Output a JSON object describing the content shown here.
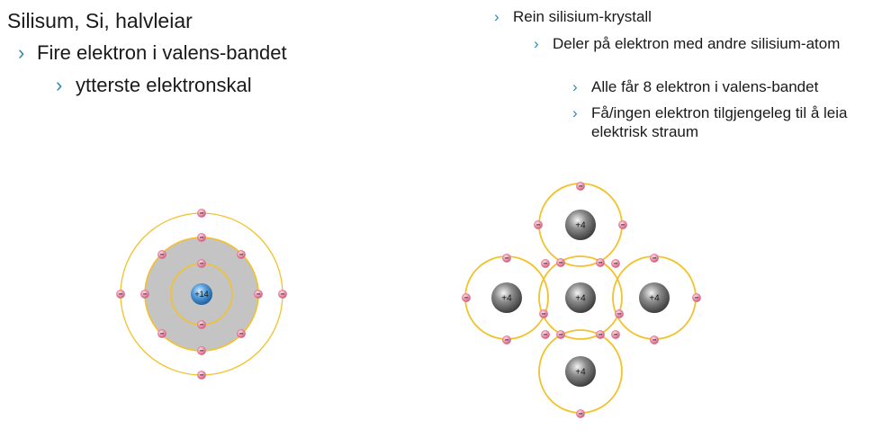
{
  "title": "Silisum, Si, halvleiar",
  "left_bullets": [
    {
      "marker": "›",
      "text": "Fire elektron i valens-bandet"
    },
    {
      "marker": "›",
      "text": "ytterste elektronskal"
    }
  ],
  "right_bullets": [
    {
      "marker": "›",
      "text": "Rein silisium-krystall"
    },
    {
      "marker": "›",
      "text": "Deler på elektron med andre silisium-atom"
    },
    {
      "marker": "›",
      "text": "Alle får 8 elektron i valens-bandet"
    },
    {
      "marker": "›",
      "text": "Få/ingen elektron tilgjengeleg til å leia elektrisk straum"
    }
  ],
  "atom": {
    "nucleus_label": "+14",
    "electron_label": "−"
  },
  "crystal": {
    "nucleus_label": "+4",
    "electron_label": "−"
  },
  "colors": {
    "bullet": "#2e8ba8",
    "orbit": "#f3c12b",
    "electron": "#e07090",
    "valence_shell_fill": "#c4c4c4",
    "nucleus_si14": "#3d86c8",
    "nucleus_crystal": "#6a6a6a"
  }
}
